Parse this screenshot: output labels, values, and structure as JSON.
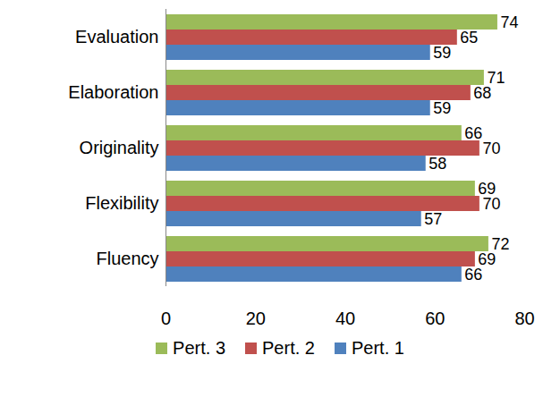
{
  "chart_data": {
    "type": "bar",
    "orientation": "horizontal",
    "categories": [
      "Evaluation",
      "Elaboration",
      "Originality",
      "Flexibility",
      "Fluency"
    ],
    "series": [
      {
        "name": "Pert. 3",
        "color": "#9bbb59",
        "values": [
          74,
          71,
          66,
          69,
          72
        ]
      },
      {
        "name": "Pert. 2",
        "color": "#c0504d",
        "values": [
          65,
          68,
          70,
          70,
          69
        ]
      },
      {
        "name": "Pert. 1",
        "color": "#4f81bd",
        "values": [
          59,
          59,
          58,
          57,
          66
        ]
      }
    ],
    "xlim": [
      0,
      80
    ],
    "xticks": [
      0,
      20,
      40,
      60,
      80
    ],
    "grid": false,
    "data_labels": true,
    "legend": "bottom"
  }
}
